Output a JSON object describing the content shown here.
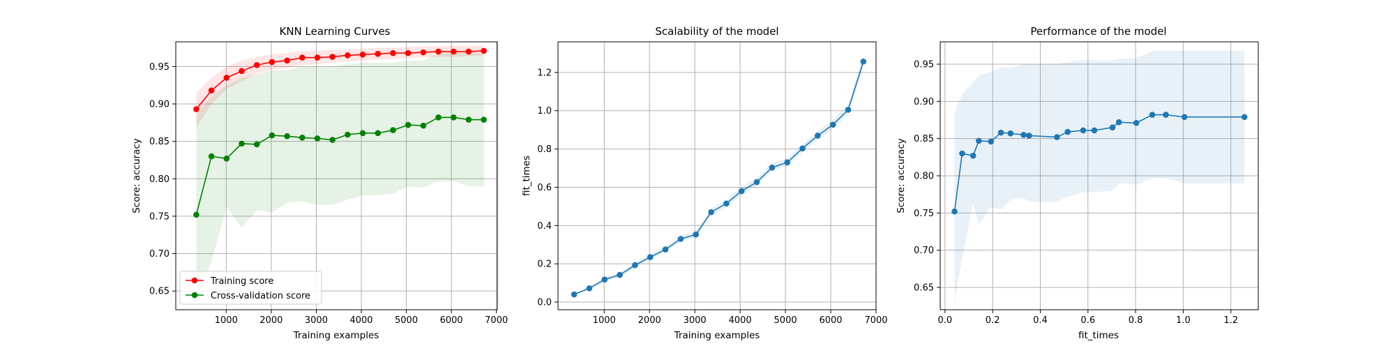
{
  "chart_data": [
    {
      "type": "line",
      "title": "KNN Learning Curves",
      "xlabel": "Training examples",
      "ylabel": "Score: accuracy",
      "xlim": [
        -120,
        7020
      ],
      "ylim": [
        0.625,
        0.983
      ],
      "xticks": [
        1000,
        2000,
        3000,
        4000,
        5000,
        6000,
        7000
      ],
      "xtick_labels": [
        "1000",
        "2000",
        "3000",
        "4000",
        "5000",
        "6000",
        "7000"
      ],
      "yticks": [
        0.65,
        0.7,
        0.75,
        0.8,
        0.85,
        0.9,
        0.95
      ],
      "ytick_labels": [
        "0.65",
        "0.70",
        "0.75",
        "0.80",
        "0.85",
        "0.90",
        "0.95"
      ],
      "grid": true,
      "legend_position": "lower-left",
      "x": [
        336,
        672,
        1008,
        1344,
        1680,
        2016,
        2352,
        2688,
        3024,
        3360,
        3696,
        4032,
        4368,
        4704,
        5040,
        5376,
        5712,
        6048,
        6384,
        6720
      ],
      "series": [
        {
          "name": "Training score",
          "color": "#ff0000",
          "values": [
            0.893,
            0.918,
            0.935,
            0.944,
            0.952,
            0.956,
            0.958,
            0.962,
            0.962,
            0.963,
            0.965,
            0.966,
            0.967,
            0.968,
            0.968,
            0.969,
            0.97,
            0.97,
            0.97,
            0.971
          ],
          "band_lower": [
            0.868,
            0.9,
            0.92,
            0.93,
            0.941,
            0.946,
            0.948,
            0.952,
            0.953,
            0.955,
            0.957,
            0.958,
            0.959,
            0.96,
            0.961,
            0.962,
            0.963,
            0.963,
            0.964,
            0.965
          ],
          "band_upper": [
            0.915,
            0.935,
            0.95,
            0.958,
            0.963,
            0.966,
            0.968,
            0.971,
            0.971,
            0.972,
            0.973,
            0.974,
            0.975,
            0.975,
            0.976,
            0.977,
            0.977,
            0.978,
            0.978,
            0.978
          ]
        },
        {
          "name": "Cross-validation score",
          "color": "#008000",
          "values": [
            0.752,
            0.83,
            0.827,
            0.847,
            0.846,
            0.858,
            0.857,
            0.855,
            0.854,
            0.852,
            0.859,
            0.861,
            0.861,
            0.865,
            0.872,
            0.871,
            0.882,
            0.882,
            0.879,
            0.879
          ],
          "band_lower": [
            0.63,
            0.69,
            0.762,
            0.735,
            0.758,
            0.755,
            0.768,
            0.77,
            0.765,
            0.765,
            0.772,
            0.778,
            0.778,
            0.78,
            0.79,
            0.788,
            0.797,
            0.797,
            0.79,
            0.79
          ],
          "band_upper": [
            0.885,
            0.91,
            0.925,
            0.935,
            0.94,
            0.945,
            0.945,
            0.95,
            0.95,
            0.95,
            0.953,
            0.955,
            0.955,
            0.955,
            0.958,
            0.958,
            0.968,
            0.968,
            0.968,
            0.968
          ]
        }
      ]
    },
    {
      "type": "line",
      "title": "Scalability of the model",
      "xlabel": "Training examples",
      "ylabel": "fit_times",
      "xlim": [
        -20,
        7000
      ],
      "ylim": [
        -0.04,
        1.36
      ],
      "xticks": [
        1000,
        2000,
        3000,
        4000,
        5000,
        6000,
        7000
      ],
      "xtick_labels": [
        "1000",
        "2000",
        "3000",
        "4000",
        "5000",
        "6000",
        "7000"
      ],
      "yticks": [
        0.0,
        0.2,
        0.4,
        0.6,
        0.8,
        1.0,
        1.2
      ],
      "ytick_labels": [
        "0.0",
        "0.2",
        "0.4",
        "0.6",
        "0.8",
        "1.0",
        "1.2"
      ],
      "grid": true,
      "x": [
        336,
        672,
        1008,
        1344,
        1680,
        2016,
        2352,
        2688,
        3024,
        3360,
        3696,
        4032,
        4368,
        4704,
        5040,
        5376,
        5712,
        6048,
        6384,
        6720
      ],
      "series": [
        {
          "color": "#1f77b4",
          "values": [
            0.04,
            0.072,
            0.118,
            0.142,
            0.193,
            0.235,
            0.275,
            0.33,
            0.353,
            0.47,
            0.515,
            0.58,
            0.627,
            0.703,
            0.73,
            0.803,
            0.87,
            0.927,
            1.005,
            1.257
          ],
          "band_lower": [
            0.035,
            0.065,
            0.108,
            0.13,
            0.18,
            0.222,
            0.26,
            0.315,
            0.338,
            0.45,
            0.495,
            0.56,
            0.607,
            0.683,
            0.71,
            0.783,
            0.848,
            0.905,
            0.98,
            1.225
          ],
          "band_upper": [
            0.045,
            0.08,
            0.128,
            0.155,
            0.206,
            0.25,
            0.292,
            0.347,
            0.37,
            0.49,
            0.535,
            0.602,
            0.65,
            0.727,
            0.752,
            0.825,
            0.895,
            0.952,
            1.032,
            1.29
          ]
        }
      ]
    },
    {
      "type": "line",
      "title": "Performance of the model",
      "xlabel": "fit_times",
      "ylabel": "Score: accuracy",
      "xlim": [
        -0.02,
        1.315
      ],
      "ylim": [
        0.62,
        0.98
      ],
      "xticks": [
        0.0,
        0.2,
        0.4,
        0.6,
        0.8,
        1.0,
        1.2
      ],
      "xtick_labels": [
        "0.0",
        "0.2",
        "0.4",
        "0.6",
        "0.8",
        "1.0",
        "1.2"
      ],
      "yticks": [
        0.65,
        0.7,
        0.75,
        0.8,
        0.85,
        0.9,
        0.95
      ],
      "ytick_labels": [
        "0.65",
        "0.70",
        "0.75",
        "0.80",
        "0.85",
        "0.90",
        "0.95"
      ],
      "grid": true,
      "series": [
        {
          "color": "#1f77b4",
          "x": [
            0.04,
            0.072,
            0.118,
            0.142,
            0.193,
            0.235,
            0.275,
            0.33,
            0.353,
            0.47,
            0.515,
            0.58,
            0.627,
            0.703,
            0.73,
            0.803,
            0.87,
            0.927,
            1.005,
            1.257
          ],
          "values": [
            0.752,
            0.83,
            0.827,
            0.847,
            0.846,
            0.858,
            0.857,
            0.855,
            0.854,
            0.852,
            0.859,
            0.861,
            0.861,
            0.865,
            0.872,
            0.871,
            0.882,
            0.882,
            0.879,
            0.879
          ],
          "band_lower": [
            0.63,
            0.69,
            0.762,
            0.735,
            0.758,
            0.755,
            0.768,
            0.77,
            0.765,
            0.765,
            0.772,
            0.778,
            0.778,
            0.78,
            0.79,
            0.788,
            0.797,
            0.797,
            0.79,
            0.79
          ],
          "band_upper": [
            0.885,
            0.91,
            0.925,
            0.935,
            0.94,
            0.945,
            0.945,
            0.95,
            0.95,
            0.95,
            0.953,
            0.955,
            0.955,
            0.955,
            0.958,
            0.958,
            0.968,
            0.968,
            0.968,
            0.968
          ]
        }
      ]
    }
  ]
}
